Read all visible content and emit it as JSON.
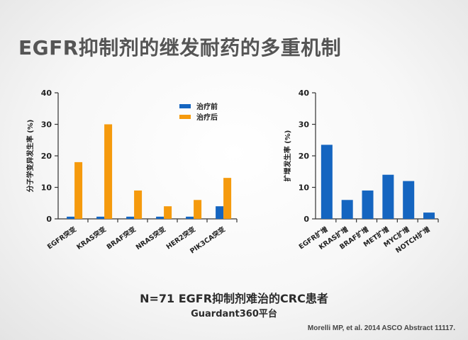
{
  "slide": {
    "title": "EGFR抑制剂的继发耐药的多重机制",
    "caption_main": "N=71 EGFR抑制剂难治的CRC患者",
    "caption_sub": "Guardant360平台",
    "reference": "Morelli MP, et al. 2014 ASCO Abstract 11117."
  },
  "colors": {
    "before": "#1565C0",
    "after": "#F59A0D",
    "axis": "#333333"
  },
  "chart_data": [
    {
      "type": "bar",
      "title": "",
      "xlabel": "",
      "ylabel": "分子学变异发生率 (%)",
      "ylim": [
        0,
        40
      ],
      "yticks": [
        0,
        10,
        20,
        30,
        40
      ],
      "legend_position": "top-right",
      "categories": [
        "EGFR突变",
        "KRAS突变",
        "BRAF突变",
        "NRAS突变",
        "HER2突变",
        "PIK3CA突变"
      ],
      "series": [
        {
          "name": "治疗前",
          "color": "#1565C0",
          "values": [
            0.7,
            0.7,
            0.7,
            0.7,
            0.7,
            4
          ]
        },
        {
          "name": "治疗后",
          "color": "#F59A0D",
          "values": [
            18,
            30,
            9,
            4,
            6,
            13
          ]
        }
      ]
    },
    {
      "type": "bar",
      "title": "",
      "xlabel": "",
      "ylabel": "扩增发生率 (%)",
      "ylim": [
        0,
        40
      ],
      "yticks": [
        0,
        10,
        20,
        30,
        40
      ],
      "categories": [
        "EGFR扩增",
        "KRAS扩增",
        "BRAF扩增",
        "MET扩增",
        "MYC扩增",
        "NOTCH扩增"
      ],
      "series": [
        {
          "color": "#1565C0",
          "values": [
            23.5,
            6,
            9,
            14,
            12,
            2
          ]
        }
      ]
    }
  ]
}
